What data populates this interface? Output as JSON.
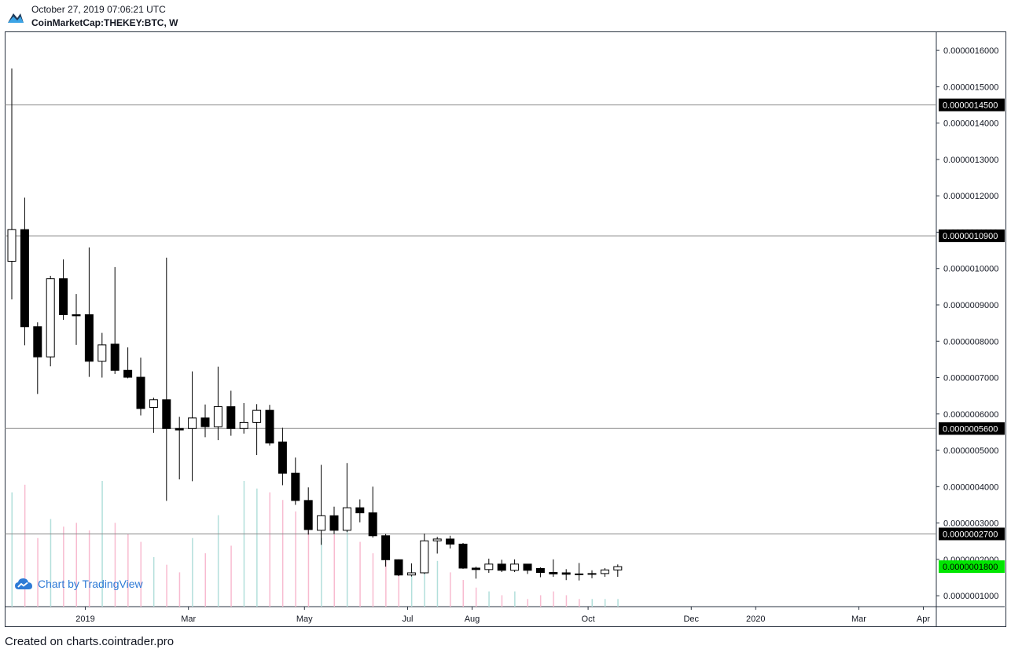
{
  "header": {
    "datetime": "October 27, 2019 07:06:21 UTC",
    "symbol": "CoinMarketCap:THEKEY:BTC, W"
  },
  "watermark": {
    "text": "Chart by TradingView",
    "icon": "tradingview-cloud-icon"
  },
  "footer": {
    "text": "Created on charts.cointrader.pro"
  },
  "colors": {
    "up_body": "#ffffff",
    "down_body": "#000000",
    "wick": "#000000",
    "volume_up": "#b2dfdb",
    "volume_down": "#f8bbd0",
    "hline": "#888888",
    "label_bg": "#000000",
    "label_text": "#ffffff",
    "current_label_bg": "#00e600",
    "current_label_text": "#000000"
  },
  "chart_data": {
    "type": "candlestick",
    "interval": "W",
    "ylim": [
      7e-08,
      1.65e-06
    ],
    "y_ticks": [
      "0.0000001000",
      "0.0000002000",
      "0.0000003000",
      "0.0000004000",
      "0.0000005000",
      "0.0000006000",
      "0.0000007000",
      "0.0000008000",
      "0.0000009000",
      "0.0000010000",
      "0.0000011000",
      "0.0000012000",
      "0.0000013000",
      "0.0000014000",
      "0.0000015000",
      "0.0000016000"
    ],
    "x_ticks": [
      {
        "label": "2019",
        "week": 6
      },
      {
        "label": "Mar",
        "week": 14
      },
      {
        "label": "May",
        "week": 23
      },
      {
        "label": "Jul",
        "week": 31
      },
      {
        "label": "Aug",
        "week": 36
      },
      {
        "label": "Oct",
        "week": 45
      },
      {
        "label": "Dec",
        "week": 53
      },
      {
        "label": "2020",
        "week": 58
      },
      {
        "label": "Mar",
        "week": 66
      },
      {
        "label": "Apr",
        "week": 71
      }
    ],
    "horizontal_lines": [
      {
        "value": 1.45e-06,
        "label": "0.0000014500"
      },
      {
        "value": 1.09e-06,
        "label": "0.0000010900"
      },
      {
        "value": 5.6e-07,
        "label": "0.0000005600"
      },
      {
        "value": 2.7e-07,
        "label": "0.0000002700"
      }
    ],
    "current_price": {
      "value": 1.8e-07,
      "label": "0.0000001800"
    },
    "candles": [
      {
        "o": 1.02e-06,
        "h": 1.55e-06,
        "l": 9.15e-07,
        "c": 1.107e-06,
        "v": 0.3
      },
      {
        "o": 1.107e-06,
        "h": 1.195e-06,
        "l": 7.89e-07,
        "c": 8.4e-07,
        "v": 0.32
      },
      {
        "o": 8.4e-07,
        "h": 8.52e-07,
        "l": 6.55e-07,
        "c": 7.57e-07,
        "v": 0.18
      },
      {
        "o": 7.57e-07,
        "h": 9.8e-07,
        "l": 7.31e-07,
        "c": 9.72e-07,
        "v": 0.23
      },
      {
        "o": 9.72e-07,
        "h": 1.025e-06,
        "l": 8.59e-07,
        "c": 8.73e-07,
        "v": 0.21
      },
      {
        "o": 8.73e-07,
        "h": 9.3e-07,
        "l": 7.9e-07,
        "c": 8.7e-07,
        "v": 0.22
      },
      {
        "o": 8.73e-07,
        "h": 1.058e-06,
        "l": 7.02e-07,
        "c": 7.45e-07,
        "v": 0.2
      },
      {
        "o": 7.45e-07,
        "h": 8.23e-07,
        "l": 7e-07,
        "c": 7.9e-07,
        "v": 0.33
      },
      {
        "o": 7.92e-07,
        "h": 1.004e-06,
        "l": 7.1e-07,
        "c": 7.2e-07,
        "v": 0.22
      },
      {
        "o": 7.2e-07,
        "h": 7.83e-07,
        "l": 6.98e-07,
        "c": 7.01e-07,
        "v": 0.19
      },
      {
        "o": 7.01e-07,
        "h": 7.55e-07,
        "l": 5.96e-07,
        "c": 6.15e-07,
        "v": 0.17
      },
      {
        "o": 6.18e-07,
        "h": 6.45e-07,
        "l": 5.48e-07,
        "c": 6.39e-07,
        "v": 0.13
      },
      {
        "o": 6.39e-07,
        "h": 1.03e-06,
        "l": 3.61e-07,
        "c": 5.6e-07,
        "v": 0.11
      },
      {
        "o": 5.6e-07,
        "h": 5.92e-07,
        "l": 4.2e-07,
        "c": 5.56e-07,
        "v": 0.09
      },
      {
        "o": 5.6e-07,
        "h": 7.17e-07,
        "l": 4.15e-07,
        "c": 5.89e-07,
        "v": 0.18
      },
      {
        "o": 5.89e-07,
        "h": 6.26e-07,
        "l": 5.36e-07,
        "c": 5.65e-07,
        "v": 0.14
      },
      {
        "o": 5.65e-07,
        "h": 7.3e-07,
        "l": 5.28e-07,
        "c": 6.2e-07,
        "v": 0.24
      },
      {
        "o": 6.2e-07,
        "h": 6.64e-07,
        "l": 5.4e-07,
        "c": 5.6e-07,
        "v": 0.16
      },
      {
        "o": 5.6e-07,
        "h": 6.3e-07,
        "l": 5.46e-07,
        "c": 5.77e-07,
        "v": 0.33
      },
      {
        "o": 5.77e-07,
        "h": 6.27e-07,
        "l": 4.87e-07,
        "c": 6.1e-07,
        "v": 0.31
      },
      {
        "o": 6.1e-07,
        "h": 6.25e-07,
        "l": 5.13e-07,
        "c": 5.2e-07,
        "v": 0.3
      },
      {
        "o": 5.23e-07,
        "h": 5.62e-07,
        "l": 4.04e-07,
        "c": 4.37e-07,
        "v": 0.28
      },
      {
        "o": 4.37e-07,
        "h": 4.8e-07,
        "l": 3.5e-07,
        "c": 3.62e-07,
        "v": 0.25
      },
      {
        "o": 3.62e-07,
        "h": 3.98e-07,
        "l": 2.68e-07,
        "c": 2.82e-07,
        "v": 0.2
      },
      {
        "o": 2.8e-07,
        "h": 4.6e-07,
        "l": 2.4e-07,
        "c": 3.2e-07,
        "v": 0.18
      },
      {
        "o": 3.2e-07,
        "h": 3.45e-07,
        "l": 2.7e-07,
        "c": 2.8e-07,
        "v": 0.19
      },
      {
        "o": 2.8e-07,
        "h": 4.65e-07,
        "l": 2.75e-07,
        "c": 3.42e-07,
        "v": 0.21
      },
      {
        "o": 3.42e-07,
        "h": 3.65e-07,
        "l": 3.02e-07,
        "c": 3.28e-07,
        "v": 0.17
      },
      {
        "o": 3.28e-07,
        "h": 4e-07,
        "l": 2.6e-07,
        "c": 2.65e-07,
        "v": 0.14
      },
      {
        "o": 2.65e-07,
        "h": 2.7e-07,
        "l": 1.8e-07,
        "c": 1.99e-07,
        "v": 0.12
      },
      {
        "o": 1.99e-07,
        "h": 2e-07,
        "l": 1.54e-07,
        "c": 1.57e-07,
        "v": 0.1
      },
      {
        "o": 1.57e-07,
        "h": 1.89e-07,
        "l": 1.53e-07,
        "c": 1.63e-07,
        "v": 0.1
      },
      {
        "o": 1.63e-07,
        "h": 2.71e-07,
        "l": 1.6e-07,
        "c": 2.51e-07,
        "v": 0.11
      },
      {
        "o": 2.51e-07,
        "h": 2.62e-07,
        "l": 2.16e-07,
        "c": 2.56e-07,
        "v": 0.12
      },
      {
        "o": 2.56e-07,
        "h": 2.65e-07,
        "l": 2.3e-07,
        "c": 2.42e-07,
        "v": 0.09
      },
      {
        "o": 2.42e-07,
        "h": 2.45e-07,
        "l": 1.74e-07,
        "c": 1.76e-07,
        "v": 0.07
      },
      {
        "o": 1.76e-07,
        "h": 1.8e-07,
        "l": 1.47e-07,
        "c": 1.72e-07,
        "v": 0.05
      },
      {
        "o": 1.72e-07,
        "h": 2.02e-07,
        "l": 1.63e-07,
        "c": 1.87e-07,
        "v": 0.04
      },
      {
        "o": 1.87e-07,
        "h": 1.99e-07,
        "l": 1.65e-07,
        "c": 1.7e-07,
        "v": 0.03
      },
      {
        "o": 1.7e-07,
        "h": 2e-07,
        "l": 1.65e-07,
        "c": 1.87e-07,
        "v": 0.04
      },
      {
        "o": 1.87e-07,
        "h": 1.87e-07,
        "l": 1.6e-07,
        "c": 1.7e-07,
        "v": 0.02
      },
      {
        "o": 1.75e-07,
        "h": 1.78e-07,
        "l": 1.51e-07,
        "c": 1.64e-07,
        "v": 0.03
      },
      {
        "o": 1.64e-07,
        "h": 2e-07,
        "l": 1.52e-07,
        "c": 1.6e-07,
        "v": 0.04
      },
      {
        "o": 1.63e-07,
        "h": 1.73e-07,
        "l": 1.43e-07,
        "c": 1.59e-07,
        "v": 0.03
      },
      {
        "o": 1.6e-07,
        "h": 1.9e-07,
        "l": 1.42e-07,
        "c": 1.59e-07,
        "v": 0.02
      },
      {
        "o": 1.59e-07,
        "h": 1.7e-07,
        "l": 1.48e-07,
        "c": 1.61e-07,
        "v": 0.02
      },
      {
        "o": 1.61e-07,
        "h": 1.76e-07,
        "l": 1.52e-07,
        "c": 1.71e-07,
        "v": 0.02
      },
      {
        "o": 1.71e-07,
        "h": 1.86e-07,
        "l": 1.52e-07,
        "c": 1.8e-07,
        "v": 0.02
      }
    ]
  }
}
